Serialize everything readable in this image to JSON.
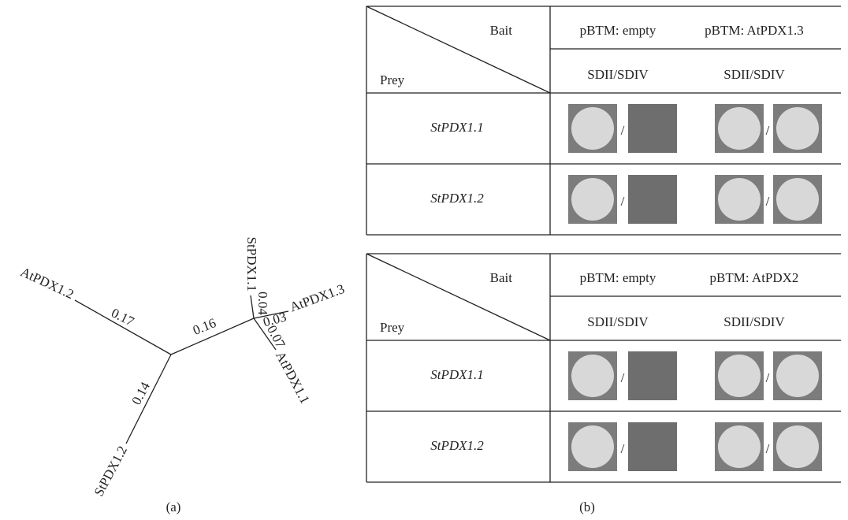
{
  "panel_a": {
    "label": "(a)",
    "leaves": [
      "AtPDX1.2",
      "StPDX1.2",
      "StPDX1.1",
      "AtPDX1.3",
      "AtPDX1.1"
    ],
    "branch_lengths": [
      "0.17",
      "0.16",
      "0.14",
      "0.04",
      "0.03",
      "0.07"
    ]
  },
  "panel_b": {
    "label": "(b)",
    "separator": "/",
    "tables": [
      {
        "bait": "Bait",
        "prey": "Prey",
        "columns": [
          "pBTM: empty",
          "pBTM: AtPDX1.3"
        ],
        "media": [
          "SDII/SDIV",
          "SDII/SDIV"
        ],
        "rows": [
          "StPDX1.1",
          "StPDX1.2"
        ]
      },
      {
        "bait": "Bait",
        "prey": "Prey",
        "columns": [
          "pBTM: empty",
          "pBTM: AtPDX2"
        ],
        "media": [
          "SDII/SDIV",
          "SDII/SDIV"
        ],
        "rows": [
          "StPDX1.1",
          "StPDX1.2"
        ]
      }
    ]
  }
}
